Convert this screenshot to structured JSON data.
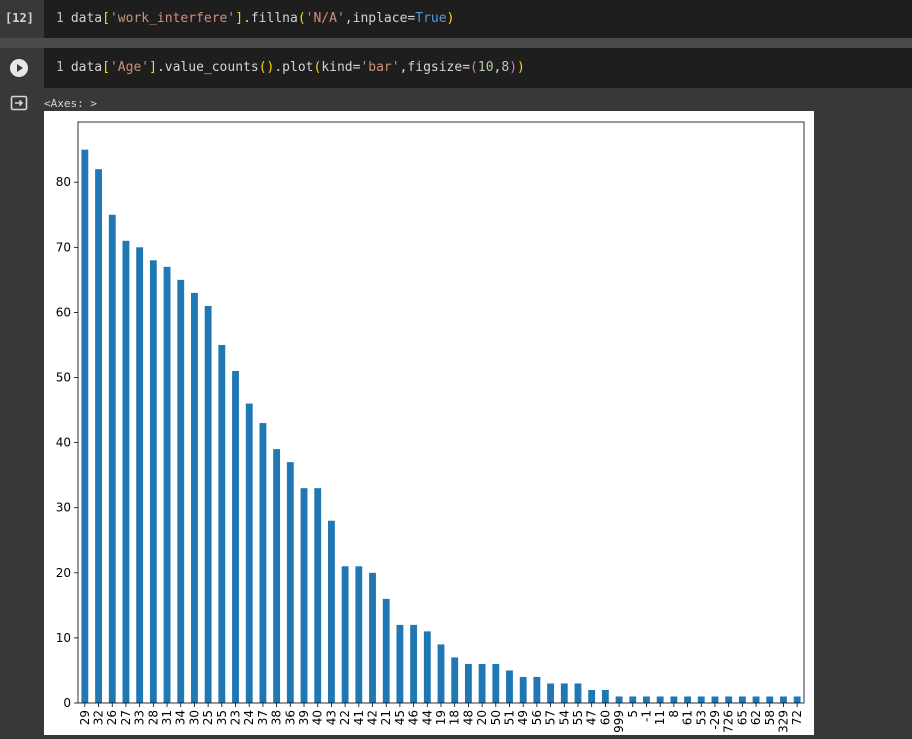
{
  "cells": [
    {
      "exec_count": "[12]",
      "line_no": "1",
      "code": "data['work_interfere'].fillna('N/A',inplace=True)"
    },
    {
      "line_no": "1",
      "code": "data['Age'].value_counts().plot(kind='bar',figsize=(10,8))",
      "output_repr": "<Axes: >"
    }
  ],
  "colors": {
    "bar": "#1f77b4",
    "page_bg": "#383838",
    "editor_bg": "#1e1e1e"
  },
  "chart_data": {
    "type": "bar",
    "title": "",
    "xlabel": "",
    "ylabel": "",
    "ylim": [
      0,
      89.25
    ],
    "yticks": [
      0,
      10,
      20,
      30,
      40,
      50,
      60,
      70,
      80
    ],
    "categories": [
      "29",
      "32",
      "26",
      "27",
      "33",
      "28",
      "31",
      "34",
      "30",
      "25",
      "35",
      "23",
      "24",
      "37",
      "38",
      "36",
      "39",
      "40",
      "43",
      "22",
      "41",
      "42",
      "21",
      "45",
      "46",
      "44",
      "19",
      "18",
      "48",
      "20",
      "50",
      "51",
      "49",
      "56",
      "57",
      "54",
      "55",
      "47",
      "60",
      "999",
      "5",
      "-1",
      "11",
      "8",
      "61",
      "53",
      "-29",
      "726",
      "65",
      "62",
      "58",
      "329",
      "72"
    ],
    "values": [
      85,
      82,
      75,
      71,
      70,
      68,
      67,
      65,
      63,
      61,
      55,
      51,
      46,
      43,
      39,
      37,
      33,
      33,
      28,
      21,
      21,
      20,
      16,
      12,
      12,
      11,
      9,
      7,
      6,
      6,
      6,
      5,
      4,
      4,
      3,
      3,
      3,
      2,
      2,
      1,
      1,
      1,
      1,
      1,
      1,
      1,
      1,
      1,
      1,
      1,
      1,
      1,
      1
    ],
    "grid": false,
    "legend": "none"
  }
}
